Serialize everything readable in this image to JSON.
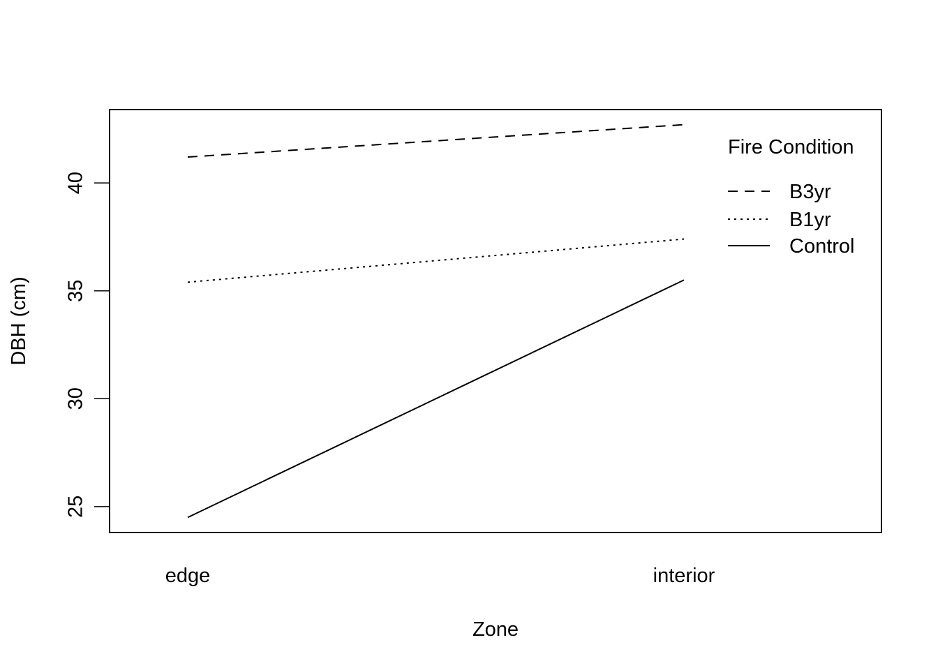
{
  "chart_data": {
    "type": "line",
    "title": "",
    "xlabel": "Zone",
    "ylabel": "DBH (cm)",
    "categories": [
      "edge",
      "interior"
    ],
    "ylim": [
      23.8,
      43.4
    ],
    "yticks": [
      25,
      30,
      35,
      40
    ],
    "grid": false,
    "legend": {
      "title": "Fire Condition",
      "placement": "top-right",
      "entries": [
        "B3yr",
        "B1yr",
        "Control"
      ]
    },
    "series": [
      {
        "name": "B3yr",
        "values": [
          41.2,
          42.7
        ],
        "line_style": "dashed",
        "color": "#000000"
      },
      {
        "name": "B1yr",
        "values": [
          35.4,
          37.4
        ],
        "line_style": "dotted",
        "color": "#000000"
      },
      {
        "name": "Control",
        "values": [
          24.5,
          35.5
        ],
        "line_style": "solid",
        "color": "#000000"
      }
    ]
  }
}
